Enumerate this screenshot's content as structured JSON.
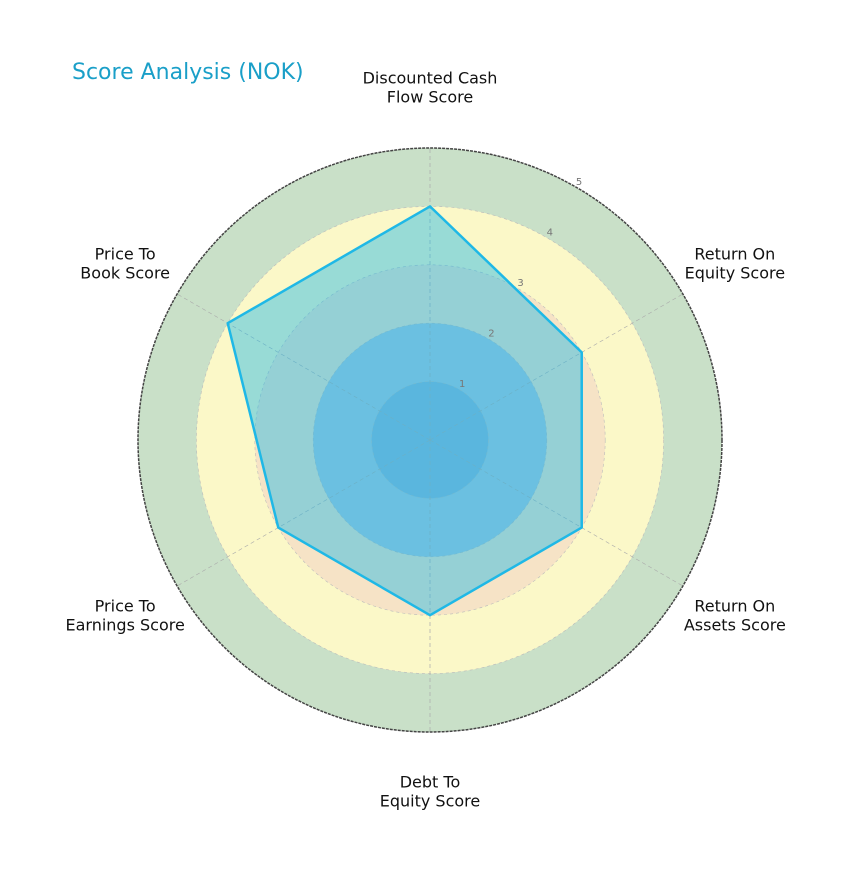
{
  "chart_data": {
    "type": "radar",
    "title": "Score Analysis (NOK)",
    "categories": [
      "Discounted Cash\nFlow Score",
      "Return On\nEquity Score",
      "Return On\nAssets Score",
      "Debt To\nEquity Score",
      "Price To\nEarnings Score",
      "Price To\nBook Score"
    ],
    "series": [
      {
        "name": "NOK",
        "color": "#1fb8e6",
        "values": [
          4,
          3,
          3,
          3,
          3,
          4
        ]
      }
    ],
    "rlim": [
      0,
      5
    ],
    "rticks": [
      1,
      2,
      3,
      4,
      5
    ],
    "band_colors": [
      "#8ab4d8",
      "#a9c6dc",
      "#f6e3c6",
      "#fbf8c8",
      "#c9e0c8"
    ],
    "grid": true
  }
}
